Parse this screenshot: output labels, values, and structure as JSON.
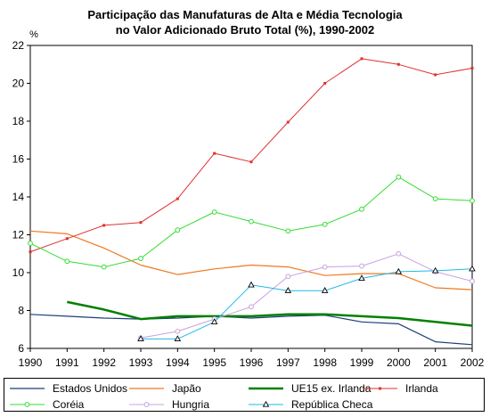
{
  "chart_data": {
    "type": "line",
    "title": "Participação das Manufaturas de Alta e Média Tecnologia",
    "subtitle": "no Valor Adicionado Bruto Total (%), 1990-2002",
    "ylabel": "%",
    "xlabel": "",
    "ylim": [
      6,
      22
    ],
    "yticks": [
      "6",
      "8",
      "10",
      "12",
      "14",
      "16",
      "18",
      "20",
      "22"
    ],
    "x": [
      "1990",
      "1991",
      "1992",
      "1993",
      "1994",
      "1995",
      "1996",
      "1997",
      "1998",
      "1999",
      "2000",
      "2001",
      "2002"
    ],
    "grid": false,
    "legend_position": "bottom",
    "series": [
      {
        "name": "Estados Unidos",
        "color": "#1f3d7a",
        "marker": "none",
        "width": 1.2,
        "values": [
          7.8,
          7.7,
          7.6,
          7.55,
          7.6,
          7.7,
          7.6,
          7.7,
          7.75,
          7.4,
          7.3,
          6.35,
          6.2
        ]
      },
      {
        "name": "Japão",
        "color": "#f07820",
        "marker": "none",
        "width": 1.2,
        "values": [
          12.2,
          12.05,
          11.3,
          10.4,
          9.9,
          10.2,
          10.4,
          10.3,
          9.85,
          9.95,
          9.95,
          9.2,
          9.1
        ]
      },
      {
        "name": "UE15 ex. Irlanda",
        "color": "#008000",
        "marker": "none",
        "width": 2.5,
        "values": [
          null,
          8.45,
          8.05,
          7.55,
          7.7,
          7.7,
          7.7,
          7.8,
          7.8,
          7.7,
          7.6,
          7.4,
          7.2
        ]
      },
      {
        "name": "Irlanda",
        "color": "#e03030",
        "marker": "dot",
        "width": 1,
        "values": [
          11.1,
          11.8,
          12.5,
          12.65,
          13.9,
          16.3,
          15.85,
          17.95,
          20.0,
          21.3,
          21.0,
          20.45,
          20.8
        ]
      },
      {
        "name": "Coréia",
        "color": "#33dd33",
        "marker": "circle",
        "width": 1,
        "values": [
          11.55,
          10.6,
          10.3,
          10.75,
          12.25,
          13.2,
          12.7,
          12.2,
          12.55,
          13.35,
          15.05,
          13.9,
          13.8
        ]
      },
      {
        "name": "Hungria",
        "color": "#c8a0e0",
        "marker": "circle",
        "width": 1,
        "values": [
          null,
          null,
          null,
          6.55,
          6.9,
          7.55,
          8.2,
          9.8,
          10.3,
          10.35,
          11.0,
          10.05,
          9.55
        ]
      },
      {
        "name": "República Checa",
        "color": "#20b8e8",
        "marker": "triangle",
        "width": 1,
        "values": [
          null,
          null,
          null,
          6.5,
          6.5,
          7.4,
          9.35,
          9.05,
          9.05,
          9.7,
          10.05,
          10.1,
          10.2
        ]
      }
    ]
  }
}
